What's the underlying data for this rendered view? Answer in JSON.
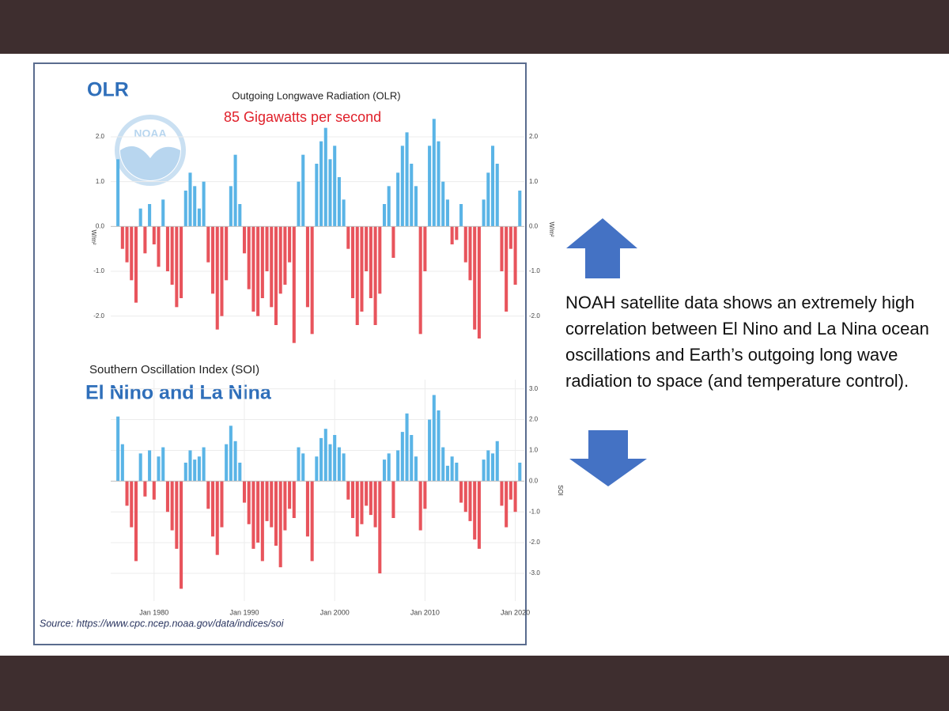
{
  "slide": {
    "paragraph": "NOAH satellite data shows an extremely high correlation between El Nino and La Nina ocean oscillations and Earth’s outgoing long wave radiation to space (and temperature control).",
    "source": "Source: https://www.cpc.ncep.noaa.gov/data/indices/soi",
    "logo_text": "NOAA"
  },
  "chart_data": [
    {
      "type": "bar",
      "label": "OLR",
      "title": "Outgoing Longwave Radiation (OLR)",
      "subtitle": "85 Gigawatts per second",
      "y_label": "W/m²",
      "positive_color": "#5ab4e6",
      "negative_color": "#e8545c",
      "xlim": [
        1975.2,
        2021
      ],
      "ylim": [
        -2.8,
        3.2
      ],
      "yticks": [
        {
          "value": 2,
          "label": "2.0"
        },
        {
          "value": 1,
          "label": "1.0"
        },
        {
          "value": 0,
          "label": "0.0"
        },
        {
          "value": -1,
          "label": "-1.0"
        },
        {
          "value": -2,
          "label": "-2.0"
        }
      ],
      "x": [
        1976,
        1976.5,
        1977,
        1977.5,
        1978,
        1978.5,
        1979,
        1979.5,
        1980,
        1980.5,
        1981,
        1981.5,
        1982,
        1982.5,
        1983,
        1983.5,
        1984,
        1984.5,
        1985,
        1985.5,
        1986,
        1986.5,
        1987,
        1987.5,
        1988,
        1988.5,
        1989,
        1989.5,
        1990,
        1990.5,
        1991,
        1991.5,
        1992,
        1992.5,
        1993,
        1993.5,
        1994,
        1994.5,
        1995,
        1995.5,
        1996,
        1996.5,
        1997,
        1997.5,
        1998,
        1998.5,
        1999,
        1999.5,
        2000,
        2000.5,
        2001,
        2001.5,
        2002,
        2002.5,
        2003,
        2003.5,
        2004,
        2004.5,
        2005,
        2005.5,
        2006,
        2006.5,
        2007,
        2007.5,
        2008,
        2008.5,
        2009,
        2009.5,
        2010,
        2010.5,
        2011,
        2011.5,
        2012,
        2012.5,
        2013,
        2013.5,
        2014,
        2014.5,
        2015,
        2015.5,
        2016,
        2016.5,
        2017,
        2017.5,
        2018,
        2018.5,
        2019,
        2019.5,
        2020,
        2020.5
      ],
      "values": [
        1.5,
        -0.5,
        -0.8,
        -1.2,
        -1.7,
        0.4,
        -0.6,
        0.5,
        -0.4,
        -0.9,
        0.6,
        -1.0,
        -1.3,
        -1.8,
        -1.6,
        0.8,
        1.2,
        0.9,
        0.4,
        1.0,
        -0.8,
        -1.5,
        -2.3,
        -2.0,
        -1.2,
        0.9,
        1.6,
        0.5,
        -0.6,
        -1.4,
        -1.9,
        -2.0,
        -1.6,
        -1.0,
        -1.8,
        -2.2,
        -1.5,
        -1.3,
        -0.8,
        -2.6,
        1.0,
        1.6,
        -1.8,
        -2.4,
        1.4,
        1.9,
        2.2,
        1.5,
        1.8,
        1.1,
        0.6,
        -0.5,
        -1.6,
        -2.2,
        -1.9,
        -1.0,
        -1.6,
        -2.2,
        -1.5,
        0.5,
        0.9,
        -0.7,
        1.2,
        1.8,
        2.1,
        1.4,
        0.9,
        -2.4,
        -1.0,
        1.8,
        2.4,
        1.9,
        1.0,
        0.6,
        -0.4,
        -0.3,
        0.5,
        -0.8,
        -1.2,
        -2.3,
        -2.5,
        0.6,
        1.2,
        1.8,
        1.4,
        -1.0,
        -1.9,
        -0.5,
        -1.3,
        0.8
      ]
    },
    {
      "type": "bar",
      "label": "El Nino and La Nina",
      "title": "Southern Oscillation Index (SOI)",
      "y_label": "SOI",
      "positive_color": "#5ab4e6",
      "negative_color": "#e8545c",
      "xlim": [
        1975.2,
        2021
      ],
      "ylim": [
        -3.9,
        3.3
      ],
      "xticks": [
        {
          "value": 1980,
          "label": "Jan 1980"
        },
        {
          "value": 1990,
          "label": "Jan 1990"
        },
        {
          "value": 2000,
          "label": "Jan 2000"
        },
        {
          "value": 2010,
          "label": "Jan 2010"
        },
        {
          "value": 2020,
          "label": "Jan 2020"
        }
      ],
      "yticks": [
        {
          "value": 3,
          "label": "3.0"
        },
        {
          "value": 2,
          "label": "2.0"
        },
        {
          "value": 1,
          "label": "1.0"
        },
        {
          "value": 0,
          "label": "0.0"
        },
        {
          "value": -1,
          "label": "-1.0"
        },
        {
          "value": -2,
          "label": "-2.0"
        },
        {
          "value": -3,
          "label": "-3.0"
        }
      ],
      "x": [
        1976,
        1976.5,
        1977,
        1977.5,
        1978,
        1978.5,
        1979,
        1979.5,
        1980,
        1980.5,
        1981,
        1981.5,
        1982,
        1982.5,
        1983,
        1983.5,
        1984,
        1984.5,
        1985,
        1985.5,
        1986,
        1986.5,
        1987,
        1987.5,
        1988,
        1988.5,
        1989,
        1989.5,
        1990,
        1990.5,
        1991,
        1991.5,
        1992,
        1992.5,
        1993,
        1993.5,
        1994,
        1994.5,
        1995,
        1995.5,
        1996,
        1996.5,
        1997,
        1997.5,
        1998,
        1998.5,
        1999,
        1999.5,
        2000,
        2000.5,
        2001,
        2001.5,
        2002,
        2002.5,
        2003,
        2003.5,
        2004,
        2004.5,
        2005,
        2005.5,
        2006,
        2006.5,
        2007,
        2007.5,
        2008,
        2008.5,
        2009,
        2009.5,
        2010,
        2010.5,
        2011,
        2011.5,
        2012,
        2012.5,
        2013,
        2013.5,
        2014,
        2014.5,
        2015,
        2015.5,
        2016,
        2016.5,
        2017,
        2017.5,
        2018,
        2018.5,
        2019,
        2019.5,
        2020,
        2020.5
      ],
      "values": [
        2.1,
        1.2,
        -0.8,
        -1.5,
        -2.6,
        0.9,
        -0.5,
        1.0,
        -0.6,
        0.8,
        1.1,
        -1.0,
        -1.6,
        -2.2,
        -3.5,
        0.6,
        1.0,
        0.7,
        0.8,
        1.1,
        -0.9,
        -1.8,
        -2.4,
        -1.5,
        1.2,
        1.8,
        1.3,
        0.6,
        -0.7,
        -1.4,
        -2.2,
        -2.0,
        -2.6,
        -1.3,
        -1.5,
        -2.1,
        -2.8,
        -1.6,
        -0.9,
        -1.2,
        1.1,
        0.9,
        -1.8,
        -2.6,
        0.8,
        1.4,
        1.7,
        1.2,
        1.5,
        1.1,
        0.9,
        -0.6,
        -1.2,
        -1.8,
        -1.4,
        -0.8,
        -1.1,
        -1.5,
        -3.0,
        0.7,
        0.9,
        -1.2,
        1.0,
        1.6,
        2.2,
        1.5,
        0.8,
        -1.6,
        -0.9,
        2.0,
        2.8,
        2.3,
        1.1,
        0.5,
        0.8,
        0.6,
        -0.7,
        -1.0,
        -1.3,
        -1.9,
        -2.2,
        0.7,
        1.0,
        0.9,
        1.3,
        -0.8,
        -1.5,
        -0.6,
        -1.0,
        0.6
      ]
    }
  ]
}
